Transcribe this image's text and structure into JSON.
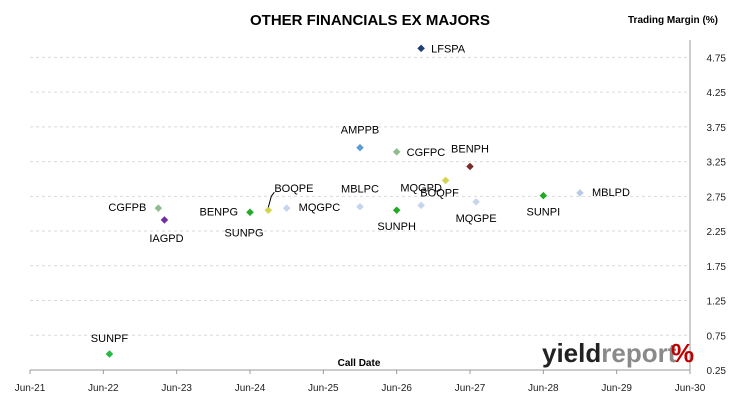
{
  "chart_data": {
    "type": "scatter",
    "title": "OTHER FINANCIALS EX MAJORS",
    "xlabel": "Call Date",
    "ylabel": "Trading Margin (%)",
    "x_ticks": [
      "Jun-21",
      "Jun-22",
      "Jun-23",
      "Jun-24",
      "Jun-25",
      "Jun-26",
      "Jun-27",
      "Jun-28",
      "Jun-29",
      "Jun-30"
    ],
    "y_ticks": [
      "0.25",
      "0.75",
      "1.25",
      "1.75",
      "2.25",
      "2.75",
      "3.25",
      "3.75",
      "4.25",
      "4.75"
    ],
    "xlim": [
      "Jun-21",
      "Jun-30"
    ],
    "ylim": [
      0.25,
      5.0
    ],
    "grid": "horizontal",
    "points": [
      {
        "label": "LFSPA",
        "x": "Oct-26",
        "y": 4.88,
        "color": "#1f3f7a"
      },
      {
        "label": "AMPPB",
        "x": "Dec-25",
        "y": 3.45,
        "color": "#5b9bd5"
      },
      {
        "label": "CGFPC",
        "x": "Jun-26",
        "y": 3.39,
        "color": "#8fbc8f"
      },
      {
        "label": "BENPH",
        "x": "Jun-27",
        "y": 3.18,
        "color": "#7b2d2d"
      },
      {
        "label": "BOQPF",
        "x": "Feb-27",
        "y": 2.98,
        "color": "#d4d44a"
      },
      {
        "label": "MBLPD",
        "x": "Dec-28",
        "y": 2.8,
        "color": "#b7cbe8"
      },
      {
        "label": "SUNPI",
        "x": "Jun-28",
        "y": 2.76,
        "color": "#22aa22"
      },
      {
        "label": "MQGPE",
        "x": "Jul-27",
        "y": 2.67,
        "color": "#c5d5ef"
      },
      {
        "label": "MQGPD",
        "x": "Oct-26",
        "y": 2.62,
        "color": "#c5d5ef"
      },
      {
        "label": "MBLPC",
        "x": "Dec-25",
        "y": 2.6,
        "color": "#c5d5ef"
      },
      {
        "label": "MQGPC",
        "x": "Dec-24",
        "y": 2.58,
        "color": "#c5d5ef"
      },
      {
        "label": "CGFPB",
        "x": "Mar-23",
        "y": 2.58,
        "color": "#8fbc8f"
      },
      {
        "label": "SUNPH",
        "x": "Jun-26",
        "y": 2.55,
        "color": "#22aa22"
      },
      {
        "label": "BOQPE",
        "x": "Sep-24",
        "y": 2.55,
        "color": "#d4d44a"
      },
      {
        "label": "BENPG",
        "x": "Jun-24",
        "y": 2.52,
        "color": "#1a7a3a"
      },
      {
        "label": "SUNPG",
        "x": "Jun-24",
        "y": 2.52,
        "color": "#22aa22"
      },
      {
        "label": "IAGPD",
        "x": "Apr-23",
        "y": 2.41,
        "color": "#7030a0"
      },
      {
        "label": "SUNPF",
        "x": "Jul-22",
        "y": 0.48,
        "color": "#22bb44"
      }
    ]
  },
  "logo": {
    "part1": "yield",
    "part2": "report",
    "symbol": "%"
  }
}
